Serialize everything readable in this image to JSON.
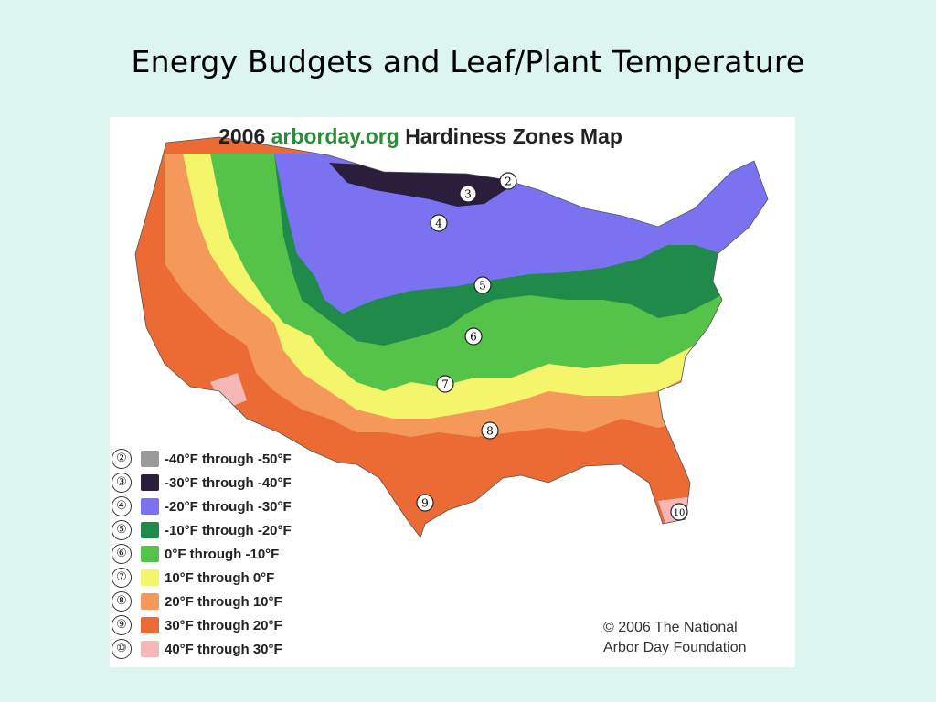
{
  "slide": {
    "title": "Energy Budgets and Leaf/Plant Temperature"
  },
  "map": {
    "title_prefix": "2006",
    "title_accent": "arborday.org",
    "title_suffix": "Hardiness Zones Map",
    "accent_color": "#2e8b3a",
    "copyright_line1": "© 2006 The National",
    "copyright_line2": "Arbor Day Foundation",
    "zones": [
      {
        "num": "②",
        "label": "-40°F through -50°F",
        "color": "#9a9a9a"
      },
      {
        "num": "③",
        "label": "-30°F through -40°F",
        "color": "#2b1d3c"
      },
      {
        "num": "④",
        "label": "-20°F through -30°F",
        "color": "#7a72f0"
      },
      {
        "num": "⑤",
        "label": "-10°F through -20°F",
        "color": "#1f8a4a"
      },
      {
        "num": "⑥",
        "label": "0°F through -10°F",
        "color": "#55c24a"
      },
      {
        "num": "⑦",
        "label": "10°F through 0°F",
        "color": "#f4f56a"
      },
      {
        "num": "⑧",
        "label": "20°F through 10°F",
        "color": "#f4995a"
      },
      {
        "num": "⑨",
        "label": "30°F through 20°F",
        "color": "#ec6a33"
      },
      {
        "num": "⑩",
        "label": "40°F through 30°F",
        "color": "#f6b7b7"
      }
    ],
    "markers": [
      "2",
      "3",
      "4",
      "5",
      "6",
      "7",
      "8",
      "9",
      "10"
    ]
  }
}
